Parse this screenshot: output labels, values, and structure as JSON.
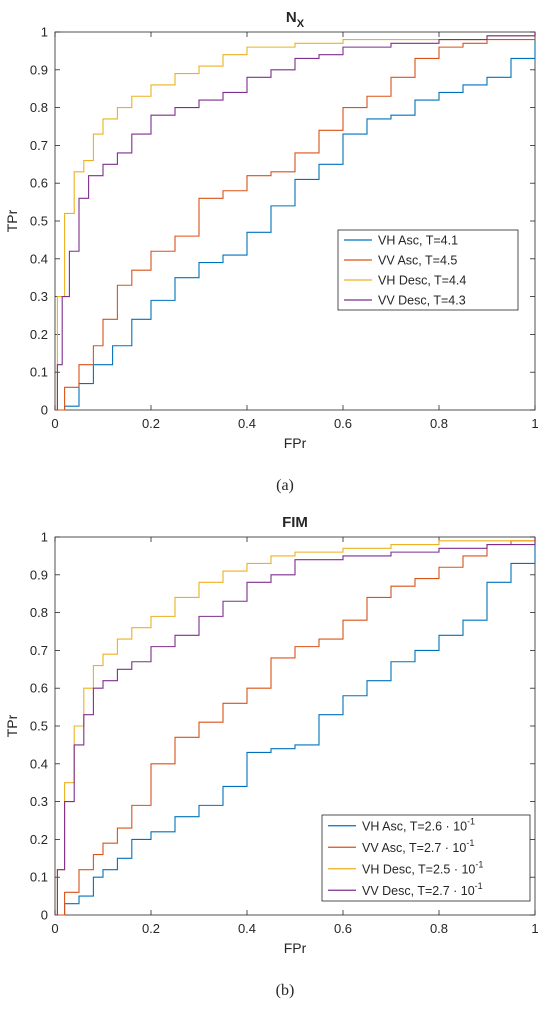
{
  "colors": {
    "vh_asc": "#0072BD",
    "vv_asc": "#D95319",
    "vh_desc": "#EDB120",
    "vv_desc": "#7E2F8E",
    "axis": "#262626",
    "background": "#ffffff"
  },
  "chart_data": [
    {
      "type": "line",
      "title": "N",
      "title_subscript": "X",
      "caption": "(a)",
      "xlabel": "FPr",
      "ylabel": "TPr",
      "xlim": [
        0,
        1
      ],
      "ylim": [
        0,
        1
      ],
      "xticks": [
        0,
        0.2,
        0.4,
        0.6,
        0.8,
        1
      ],
      "xtick_labels": [
        "0",
        "0.2",
        "0.4",
        "0.6",
        "0.8",
        "1"
      ],
      "yticks": [
        0,
        0.1,
        0.2,
        0.3,
        0.4,
        0.5,
        0.6,
        0.7,
        0.8,
        0.9,
        1
      ],
      "ytick_labels": [
        "0",
        "0.1",
        "0.2",
        "0.3",
        "0.4",
        "0.5",
        "0.6",
        "0.7",
        "0.8",
        "0.9",
        "1"
      ],
      "grid": false,
      "step": true,
      "legend_position": "right-middle",
      "series": [
        {
          "name": "VH Asc, T=4.1",
          "color": "#0072BD",
          "x": [
            0,
            0.02,
            0.05,
            0.08,
            0.12,
            0.16,
            0.2,
            0.25,
            0.3,
            0.35,
            0.4,
            0.45,
            0.5,
            0.55,
            0.6,
            0.65,
            0.7,
            0.75,
            0.8,
            0.85,
            0.9,
            0.95,
            1
          ],
          "y": [
            0,
            0.01,
            0.07,
            0.12,
            0.17,
            0.24,
            0.29,
            0.35,
            0.39,
            0.41,
            0.47,
            0.54,
            0.61,
            0.65,
            0.73,
            0.77,
            0.78,
            0.82,
            0.84,
            0.86,
            0.88,
            0.93,
            1
          ]
        },
        {
          "name": "VV Asc, T=4.5",
          "color": "#D95319",
          "x": [
            0,
            0.02,
            0.05,
            0.08,
            0.1,
            0.13,
            0.16,
            0.2,
            0.25,
            0.3,
            0.35,
            0.4,
            0.45,
            0.5,
            0.55,
            0.6,
            0.65,
            0.7,
            0.75,
            0.8,
            0.85,
            0.9,
            0.95,
            1
          ],
          "y": [
            0,
            0.06,
            0.12,
            0.17,
            0.24,
            0.33,
            0.37,
            0.42,
            0.46,
            0.56,
            0.58,
            0.62,
            0.63,
            0.68,
            0.74,
            0.8,
            0.83,
            0.88,
            0.93,
            0.96,
            0.97,
            0.98,
            0.98,
            1
          ]
        },
        {
          "name": "VH Desc, T=4.4",
          "color": "#EDB120",
          "x": [
            0,
            0.005,
            0.02,
            0.04,
            0.06,
            0.08,
            0.1,
            0.13,
            0.16,
            0.2,
            0.25,
            0.3,
            0.35,
            0.4,
            0.5,
            0.6,
            0.7,
            0.8,
            0.9,
            1
          ],
          "y": [
            0,
            0.3,
            0.52,
            0.63,
            0.66,
            0.73,
            0.77,
            0.8,
            0.83,
            0.86,
            0.89,
            0.91,
            0.94,
            0.96,
            0.97,
            0.98,
            0.98,
            0.98,
            0.99,
            1
          ]
        },
        {
          "name": "VV Desc, T=4.3",
          "color": "#7E2F8E",
          "x": [
            0,
            0.005,
            0.015,
            0.03,
            0.05,
            0.07,
            0.1,
            0.13,
            0.16,
            0.2,
            0.25,
            0.3,
            0.35,
            0.4,
            0.45,
            0.5,
            0.55,
            0.6,
            0.7,
            0.8,
            0.9,
            1
          ],
          "y": [
            0,
            0.12,
            0.3,
            0.42,
            0.56,
            0.62,
            0.65,
            0.68,
            0.73,
            0.78,
            0.8,
            0.82,
            0.84,
            0.88,
            0.9,
            0.93,
            0.94,
            0.96,
            0.97,
            0.98,
            0.99,
            1
          ]
        }
      ]
    },
    {
      "type": "line",
      "title": "FIM",
      "title_subscript": "",
      "caption": "(b)",
      "xlabel": "FPr",
      "ylabel": "TPr",
      "xlim": [
        0,
        1
      ],
      "ylim": [
        0,
        1
      ],
      "xticks": [
        0,
        0.2,
        0.4,
        0.6,
        0.8,
        1
      ],
      "xtick_labels": [
        "0",
        "0.2",
        "0.4",
        "0.6",
        "0.8",
        "1"
      ],
      "yticks": [
        0,
        0.1,
        0.2,
        0.3,
        0.4,
        0.5,
        0.6,
        0.7,
        0.8,
        0.9,
        1
      ],
      "ytick_labels": [
        "0",
        "0.1",
        "0.2",
        "0.3",
        "0.4",
        "0.5",
        "0.6",
        "0.7",
        "0.8",
        "0.9",
        "1"
      ],
      "grid": false,
      "step": true,
      "legend_position": "bottom-right",
      "series": [
        {
          "name": "VH Asc, T=2.6 · 10",
          "exponent": "-1",
          "color": "#0072BD",
          "x": [
            0,
            0.02,
            0.05,
            0.08,
            0.1,
            0.13,
            0.16,
            0.2,
            0.25,
            0.3,
            0.35,
            0.4,
            0.45,
            0.5,
            0.55,
            0.6,
            0.65,
            0.7,
            0.75,
            0.8,
            0.85,
            0.9,
            0.95,
            1
          ],
          "y": [
            0,
            0.03,
            0.05,
            0.1,
            0.12,
            0.15,
            0.2,
            0.22,
            0.26,
            0.29,
            0.34,
            0.43,
            0.44,
            0.45,
            0.53,
            0.58,
            0.62,
            0.67,
            0.7,
            0.74,
            0.78,
            0.88,
            0.93,
            1
          ]
        },
        {
          "name": "VV Asc, T=2.7 · 10",
          "exponent": "-1",
          "color": "#D95319",
          "x": [
            0,
            0.02,
            0.05,
            0.08,
            0.1,
            0.13,
            0.16,
            0.2,
            0.25,
            0.3,
            0.35,
            0.4,
            0.45,
            0.5,
            0.55,
            0.6,
            0.65,
            0.7,
            0.75,
            0.8,
            0.85,
            0.9,
            0.95,
            1
          ],
          "y": [
            0,
            0.06,
            0.12,
            0.16,
            0.19,
            0.23,
            0.29,
            0.4,
            0.47,
            0.51,
            0.56,
            0.6,
            0.68,
            0.71,
            0.73,
            0.78,
            0.84,
            0.87,
            0.89,
            0.92,
            0.95,
            0.98,
            0.99,
            1
          ]
        },
        {
          "name": "VH Desc, T=2.5 · 10",
          "exponent": "-1",
          "color": "#EDB120",
          "x": [
            0,
            0.005,
            0.02,
            0.04,
            0.06,
            0.08,
            0.1,
            0.13,
            0.16,
            0.2,
            0.25,
            0.3,
            0.35,
            0.4,
            0.45,
            0.5,
            0.6,
            0.7,
            0.8,
            0.9,
            1
          ],
          "y": [
            0,
            0.12,
            0.35,
            0.5,
            0.6,
            0.66,
            0.69,
            0.73,
            0.76,
            0.79,
            0.84,
            0.88,
            0.91,
            0.93,
            0.95,
            0.96,
            0.97,
            0.98,
            0.99,
            0.99,
            1
          ]
        },
        {
          "name": "VV Desc, T=2.7 · 10",
          "exponent": "-1",
          "color": "#7E2F8E",
          "x": [
            0,
            0.005,
            0.02,
            0.04,
            0.06,
            0.08,
            0.1,
            0.13,
            0.16,
            0.2,
            0.25,
            0.3,
            0.35,
            0.4,
            0.45,
            0.5,
            0.6,
            0.7,
            0.8,
            0.9,
            1
          ],
          "y": [
            0,
            0.12,
            0.3,
            0.45,
            0.53,
            0.6,
            0.62,
            0.65,
            0.67,
            0.71,
            0.74,
            0.79,
            0.83,
            0.88,
            0.9,
            0.94,
            0.95,
            0.96,
            0.97,
            0.98,
            1
          ]
        }
      ]
    }
  ]
}
